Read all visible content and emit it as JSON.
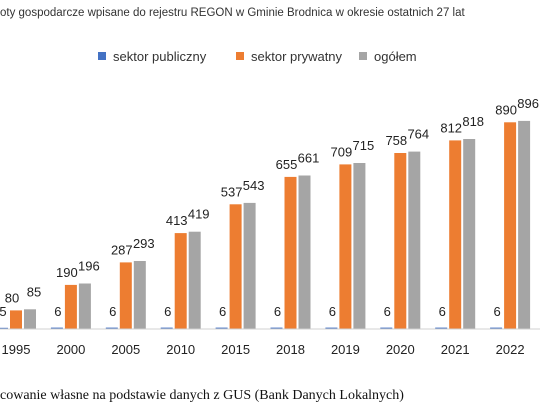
{
  "chart_data": {
    "type": "bar",
    "title": "oty  gospodarcze wpisane do rejestru REGON  w Gminie Brodnica w okresie ostatnich 27 lat",
    "categories": [
      "1995",
      "2000",
      "2005",
      "2010",
      "2015",
      "2018",
      "2019",
      "2020",
      "2021",
      "2022"
    ],
    "series": [
      {
        "name": "sektor publiczny",
        "color": "#4472C4",
        "values": [
          5,
          6,
          6,
          6,
          6,
          6,
          6,
          6,
          6,
          6
        ]
      },
      {
        "name": "sektor prywatny",
        "color": "#ED7D31",
        "values": [
          80,
          190,
          287,
          413,
          537,
          655,
          709,
          758,
          812,
          890
        ]
      },
      {
        "name": "ogółem",
        "color": "#A5A5A5",
        "values": [
          85,
          196,
          293,
          419,
          543,
          661,
          715,
          764,
          818,
          896
        ]
      }
    ],
    "ylim": [
      0,
      900
    ],
    "grid": false,
    "legend_position": "top-center"
  },
  "caption": "cowanie własne na podstawie danych z GUS (Bank Danych Lokalnych)"
}
